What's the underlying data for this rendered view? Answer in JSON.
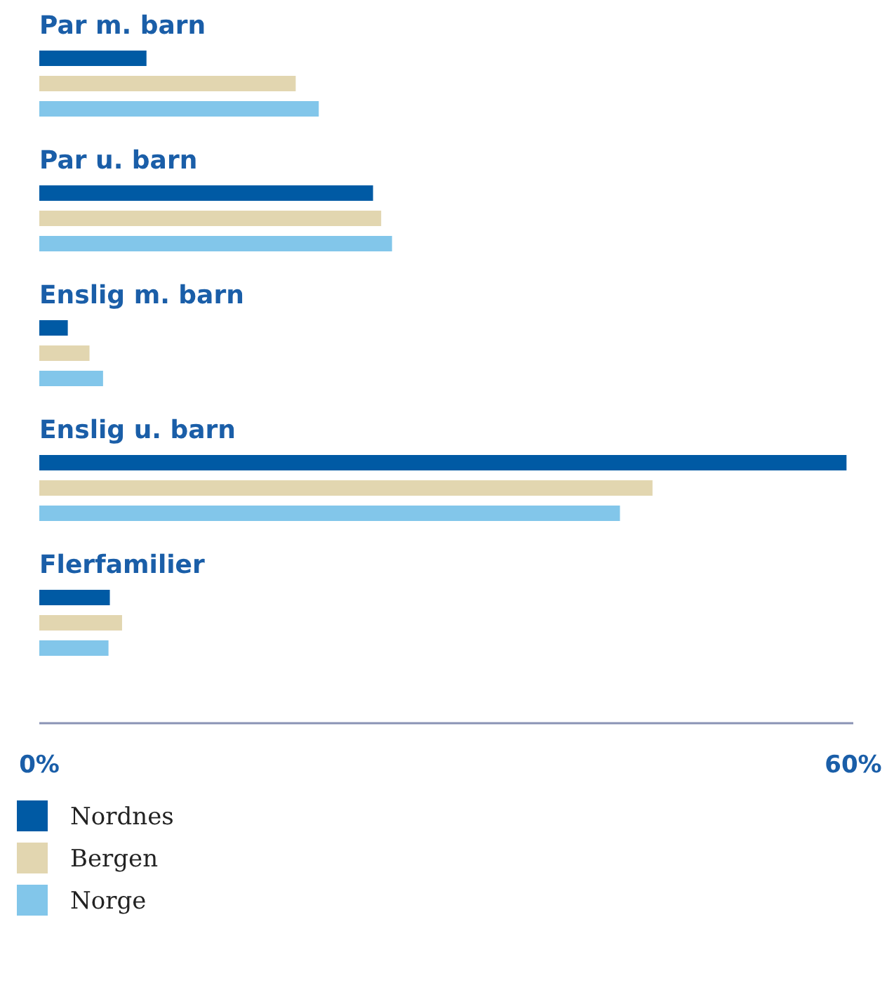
{
  "chart_data": {
    "type": "bar",
    "orientation": "horizontal",
    "categories": [
      "Par m. barn",
      "Par u. barn",
      "Enslig m. barn",
      "Enslig u. barn",
      "Flerfamilier"
    ],
    "series": [
      {
        "name": "Nordnes",
        "color": "#005aa4",
        "values": [
          7.9,
          24.6,
          2.1,
          59.5,
          5.2
        ]
      },
      {
        "name": "Bergen",
        "color": "#e2d6b0",
        "values": [
          18.9,
          25.2,
          3.7,
          45.2,
          6.1
        ]
      },
      {
        "name": "Norge",
        "color": "#82c6ea",
        "values": [
          20.6,
          26.0,
          4.7,
          42.8,
          5.1
        ]
      }
    ],
    "xlim": [
      0,
      60
    ],
    "xticks": [
      {
        "value": 0,
        "label": "0%"
      },
      {
        "value": 60,
        "label": "60%"
      }
    ],
    "grid": false,
    "legend": "bottom"
  }
}
